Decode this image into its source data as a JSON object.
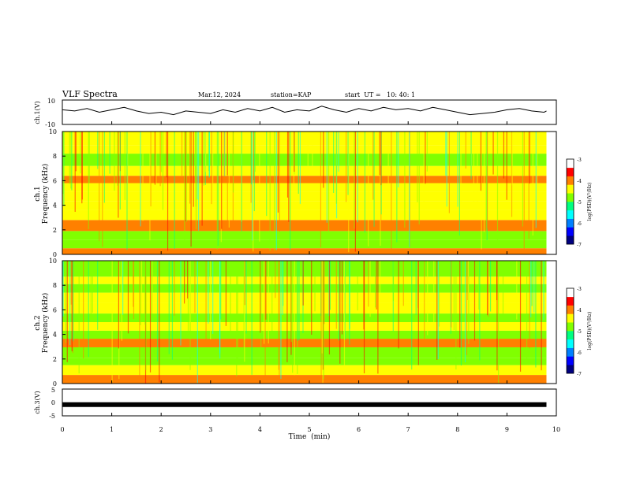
{
  "header": {
    "title": "VLF Spectra",
    "date": "Mar.12, 2024",
    "station": "station=KAP",
    "start": "start  UT =   10: 40: 1"
  },
  "colors": {
    "ink": "#000000",
    "colormap": [
      "#000080",
      "#0000ff",
      "#0080ff",
      "#00ffff",
      "#00ff80",
      "#80ff00",
      "#ffff00",
      "#ff8000",
      "#ff0000",
      "#ffffff"
    ]
  },
  "chart_data": [
    {
      "type": "line",
      "panel": "ch1-waveform",
      "ylabel": "ch.1(V)",
      "ylim": [
        -10,
        10
      ],
      "yticks": [
        "10",
        "-10"
      ],
      "xlim": [
        0,
        10
      ],
      "x": [
        0,
        0.25,
        0.5,
        0.75,
        1,
        1.25,
        1.5,
        1.75,
        2,
        2.25,
        2.5,
        2.75,
        3,
        3.25,
        3.5,
        3.75,
        4,
        4.25,
        4.5,
        4.75,
        5,
        5.25,
        5.5,
        5.75,
        6,
        6.25,
        6.5,
        6.75,
        7,
        7.25,
        7.5,
        7.75,
        8,
        8.25,
        8.5,
        8.75,
        9,
        9.25,
        9.5,
        9.75,
        9.8
      ],
      "values": [
        2,
        1,
        3,
        0,
        2,
        4,
        1,
        -1,
        0,
        -2,
        1,
        0,
        -1,
        2,
        0,
        3,
        1,
        4,
        0,
        2,
        1,
        5,
        2,
        0,
        3,
        1,
        4,
        2,
        3,
        1,
        4,
        2,
        0,
        -2,
        -1,
        0,
        2,
        3,
        1,
        0,
        1
      ]
    },
    {
      "type": "heatmap",
      "panel": "ch1-spectrogram",
      "ylabel": "ch.1 Frequency (kHz)",
      "ylim": [
        0,
        10
      ],
      "yticks": [
        "0",
        "2",
        "4",
        "6",
        "8",
        "10"
      ],
      "xlim": [
        0,
        9.8
      ],
      "colorbar": {
        "label": "log(PSD)(V²/Hz)",
        "range": [
          -7,
          -3
        ],
        "ticks": [
          "-3",
          "-4",
          "-5",
          "-6",
          "-7"
        ]
      },
      "band_levels_kHz": [
        0.2,
        0.8,
        1.6,
        2.2,
        3.4,
        3.9,
        4.8,
        5.4,
        6.2,
        6.6,
        7.8,
        8.6,
        9.2
      ],
      "band_log_psd": [
        -3.5,
        -4.6,
        -4.5,
        -3.6,
        -4.3,
        -4.2,
        -4.1,
        -4.2,
        -3.8,
        -4.0,
        -4.5,
        -4.3,
        -4.2
      ]
    },
    {
      "type": "heatmap",
      "panel": "ch2-spectrogram",
      "ylabel": "ch.2 Frequency (kHz)",
      "ylim": [
        0,
        10
      ],
      "yticks": [
        "0",
        "2",
        "4",
        "6",
        "8",
        "10"
      ],
      "xlim": [
        0,
        9.8
      ],
      "colorbar": {
        "label": "log(PSD)(V²/Hz)",
        "range": [
          -7,
          -3
        ],
        "ticks": [
          "-3",
          "-4",
          "-5",
          "-6",
          "-7"
        ]
      },
      "band_levels_kHz": [
        0.2,
        1.2,
        1.8,
        2.4,
        3.5,
        3.8,
        4.8,
        5.2,
        6.2,
        7.0,
        7.8,
        8.4,
        9.0
      ],
      "band_log_psd": [
        -3.6,
        -4.3,
        -4.4,
        -4.5,
        -3.8,
        -4.6,
        -4.0,
        -4.5,
        -4.2,
        -4.3,
        -4.7,
        -4.2,
        -4.4
      ]
    },
    {
      "type": "line",
      "panel": "ch3-waveform",
      "ylabel": "ch.3(V)",
      "ylim": [
        -5,
        5
      ],
      "yticks": [
        "5",
        "0",
        "-5"
      ],
      "xlim": [
        0,
        10
      ],
      "xlabel": "Time  (min)",
      "xticks": [
        "0",
        "1",
        "2",
        "3",
        "4",
        "5",
        "6",
        "7",
        "8",
        "9",
        "10"
      ],
      "x": [
        0,
        9.8
      ],
      "values": [
        -0.8,
        -0.8
      ]
    }
  ]
}
